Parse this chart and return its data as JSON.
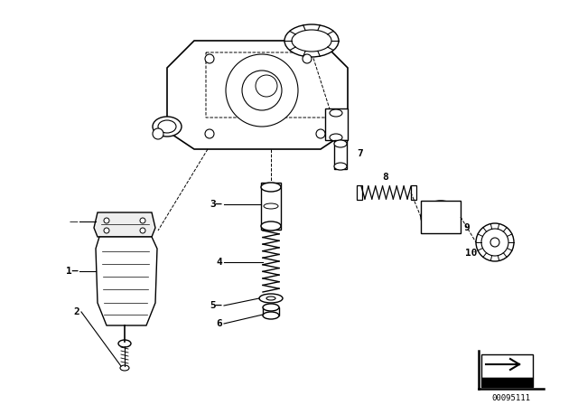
{
  "bg_color": "#ffffff",
  "line_color": "#000000",
  "diagram_id": "00095111",
  "figsize": [
    6.4,
    4.48
  ],
  "dpi": 100
}
